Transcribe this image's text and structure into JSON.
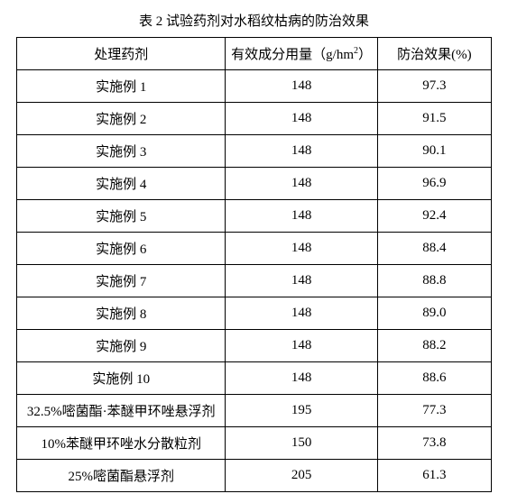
{
  "title": "表 2 试验药剂对水稻纹枯病的防治效果",
  "columns": [
    "处理药剂",
    "有效成分用量（g/hm²）",
    "防治效果(%)"
  ],
  "rows": [
    {
      "agent": "实施例 1",
      "dose": "148",
      "effect": "97.3"
    },
    {
      "agent": "实施例 2",
      "dose": "148",
      "effect": "91.5"
    },
    {
      "agent": "实施例 3",
      "dose": "148",
      "effect": "90.1"
    },
    {
      "agent": "实施例 4",
      "dose": "148",
      "effect": "96.9"
    },
    {
      "agent": "实施例 5",
      "dose": "148",
      "effect": "92.4"
    },
    {
      "agent": "实施例 6",
      "dose": "148",
      "effect": "88.4"
    },
    {
      "agent": "实施例 7",
      "dose": "148",
      "effect": "88.8"
    },
    {
      "agent": "实施例 8",
      "dose": "148",
      "effect": "89.0"
    },
    {
      "agent": "实施例 9",
      "dose": "148",
      "effect": "88.2"
    },
    {
      "agent": "实施例 10",
      "dose": "148",
      "effect": "88.6"
    },
    {
      "agent": "32.5%嘧菌酯·苯醚甲环唑悬浮剂",
      "dose": "195",
      "effect": "77.3"
    },
    {
      "agent": "10%苯醚甲环唑水分散粒剂",
      "dose": "150",
      "effect": "73.8"
    },
    {
      "agent": "25%嘧菌酯悬浮剂",
      "dose": "205",
      "effect": "61.3"
    }
  ]
}
